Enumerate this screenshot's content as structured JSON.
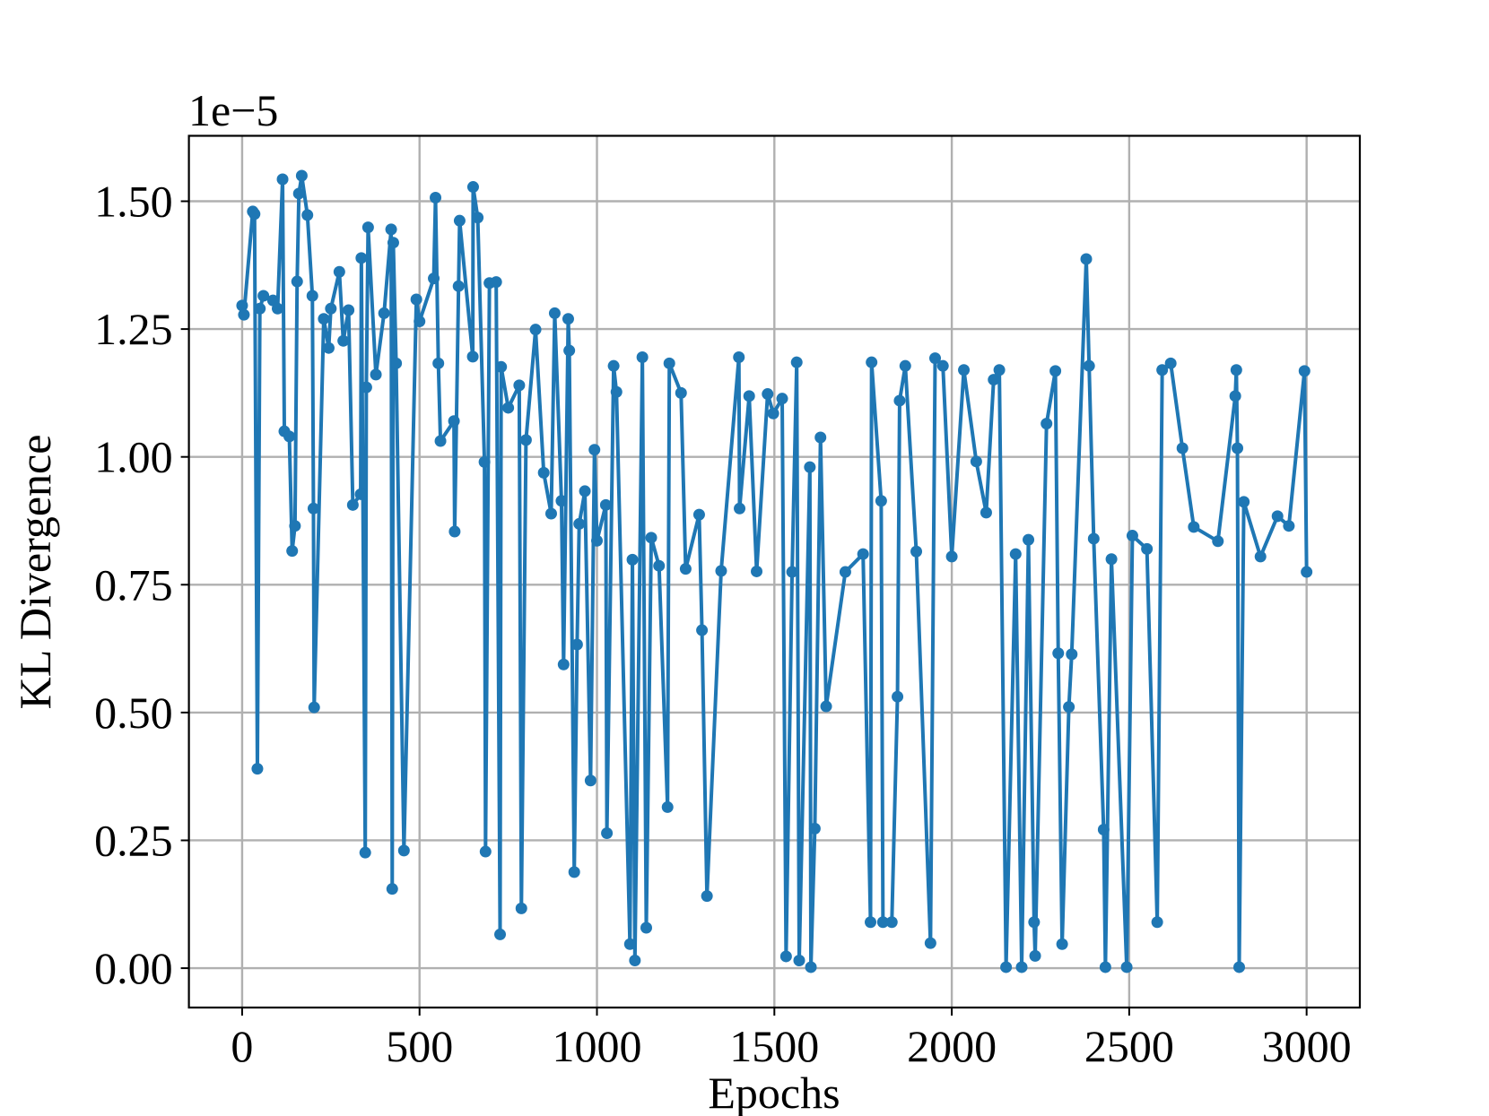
{
  "chart_data": {
    "type": "line",
    "y_offset_label": "1e−5",
    "xlabel": "Epochs",
    "ylabel": "KL Divergence",
    "color": "#1f77b4",
    "grid": true,
    "markers": true,
    "xlim": [
      -150,
      3150
    ],
    "ylim": [
      -0.077,
      1.628
    ],
    "xticks": [
      0,
      500,
      1000,
      1500,
      2000,
      2500,
      3000
    ],
    "yticks": [
      {
        "value": 0,
        "label": "0.00"
      },
      {
        "value": 0.25,
        "label": "0.25"
      },
      {
        "value": 0.5,
        "label": "0.50"
      },
      {
        "value": 0.75,
        "label": "0.75"
      },
      {
        "value": 1,
        "label": "1.00"
      },
      {
        "value": 1.25,
        "label": "1.25"
      },
      {
        "value": 1.5,
        "label": "1.50"
      }
    ],
    "x": [
      0,
      5,
      30,
      35,
      43,
      50,
      60,
      87,
      100,
      114,
      119,
      133,
      141,
      149,
      155,
      160,
      168,
      184,
      198,
      201,
      203,
      230,
      244,
      250,
      274,
      285,
      300,
      312,
      334,
      336,
      347,
      350,
      355,
      377,
      400,
      420,
      423,
      426,
      434,
      456,
      491,
      500,
      540,
      545,
      553,
      559,
      597,
      599,
      610,
      613,
      650,
      651,
      664,
      683,
      686,
      697,
      716,
      727,
      730,
      750,
      781,
      787,
      800,
      827,
      850,
      871,
      881,
      900,
      906,
      919,
      922,
      936,
      944,
      950,
      966,
      982,
      993,
      1000,
      1025,
      1028,
      1047,
      1055,
      1093,
      1100,
      1107,
      1128,
      1139,
      1153,
      1175,
      1199,
      1204,
      1237,
      1250,
      1288,
      1296,
      1310,
      1350,
      1400,
      1402,
      1429,
      1450,
      1481,
      1497,
      1522,
      1533,
      1550,
      1563,
      1570,
      1600,
      1603,
      1614,
      1630,
      1646,
      1700,
      1750,
      1771,
      1774,
      1801,
      1806,
      1831,
      1847,
      1853,
      1869,
      1900,
      1940,
      1953,
      1975,
      2000,
      2034,
      2069,
      2097,
      2118,
      2134,
      2153,
      2180,
      2197,
      2216,
      2232,
      2235,
      2267,
      2292,
      2300,
      2311,
      2330,
      2338,
      2379,
      2387,
      2400,
      2428,
      2433,
      2450,
      2493,
      2509,
      2550,
      2579,
      2593,
      2617,
      2650,
      2682,
      2750,
      2799,
      2802,
      2805,
      2810,
      2823,
      2870,
      2918,
      2950,
      2994,
      3000
    ],
    "values": [
      1.296,
      1.278,
      1.48,
      1.475,
      0.39,
      1.29,
      1.315,
      1.306,
      1.29,
      1.543,
      1.05,
      1.04,
      0.816,
      0.865,
      1.343,
      1.515,
      1.55,
      1.473,
      1.315,
      0.899,
      0.51,
      1.27,
      1.213,
      1.29,
      1.362,
      1.227,
      1.287,
      0.906,
      0.927,
      1.389,
      0.226,
      1.136,
      1.449,
      1.161,
      1.281,
      1.445,
      0.155,
      1.419,
      1.183,
      0.23,
      1.308,
      1.265,
      1.349,
      1.507,
      1.183,
      1.031,
      1.07,
      0.854,
      1.334,
      1.462,
      1.196,
      1.528,
      1.468,
      0.99,
      0.228,
      1.34,
      1.342,
      0.066,
      1.176,
      1.096,
      1.14,
      0.117,
      1.033,
      1.249,
      0.969,
      0.889,
      1.281,
      0.914,
      0.594,
      1.27,
      1.208,
      0.188,
      0.633,
      0.869,
      0.933,
      0.367,
      1.014,
      0.836,
      0.906,
      0.264,
      1.178,
      1.127,
      0.047,
      0.799,
      0.015,
      1.195,
      0.079,
      0.842,
      0.787,
      0.315,
      1.183,
      1.125,
      0.781,
      0.887,
      0.661,
      0.141,
      0.777,
      1.195,
      0.899,
      1.119,
      0.776,
      1.123,
      1.085,
      1.114,
      0.023,
      0.775,
      1.185,
      0.015,
      0.98,
      0.002,
      0.273,
      1.038,
      0.512,
      0.775,
      0.81,
      0.09,
      1.185,
      0.914,
      0.09,
      0.09,
      0.531,
      1.11,
      1.178,
      0.815,
      0.049,
      1.193,
      1.178,
      0.805,
      1.17,
      0.991,
      0.891,
      1.151,
      1.17,
      0.002,
      0.81,
      0.002,
      0.838,
      0.09,
      0.024,
      1.065,
      1.168,
      0.616,
      0.047,
      0.511,
      0.614,
      1.387,
      1.178,
      0.84,
      0.271,
      0.002,
      0.8,
      0.002,
      0.846,
      0.82,
      0.09,
      1.17,
      1.183,
      1.017,
      0.863,
      0.835,
      1.119,
      1.17,
      1.017,
      0.002,
      0.912,
      0.805,
      0.884,
      0.865,
      1.168,
      0.775
    ]
  }
}
